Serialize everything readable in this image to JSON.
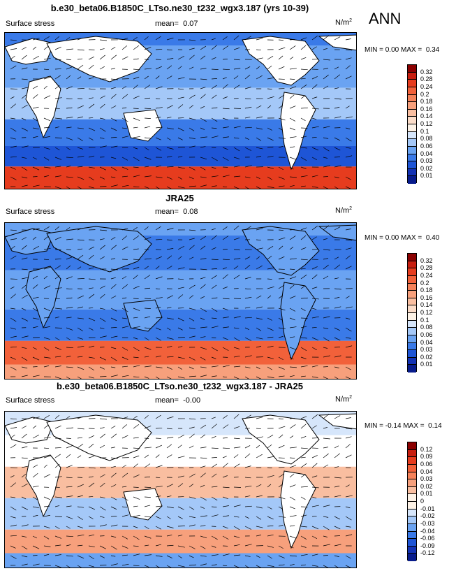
{
  "season": "ANN",
  "panels": [
    {
      "title": "b.e30_beta06.B1850C_LTso.ne30_t232_wgx3.187 (yrs 10-39)",
      "variable": "Surface stress",
      "mean_label": "mean=",
      "mean": "0.07",
      "units_base": "N/m",
      "units_exp": "2",
      "min_label": "MIN =",
      "min": "0.00",
      "max_label": "MAX =",
      "max": "0.34",
      "levels": [
        "0.32",
        "0.28",
        "0.24",
        "0.2",
        "0.18",
        "0.16",
        "0.14",
        "0.12",
        "0.1",
        "0.08",
        "0.06",
        "0.04",
        "0.03",
        "0.02",
        "0.01"
      ],
      "colors": [
        "#8b0000",
        "#c81e0f",
        "#e63c1e",
        "#f2613a",
        "#f5825a",
        "#f7a07c",
        "#f9bea0",
        "#fbdcc8",
        "#fdf2e6",
        "#d6e6fb",
        "#a4c8f8",
        "#6aa3f2",
        "#3a7ae8",
        "#1e55d6",
        "#1332b4",
        "#081c8c"
      ]
    },
    {
      "title": "JRA25",
      "variable": "Surface stress",
      "mean_label": "mean=",
      "mean": "0.08",
      "units_base": "N/m",
      "units_exp": "2",
      "min_label": "MIN =",
      "min": "0.00",
      "max_label": "MAX =",
      "max": "0.40",
      "levels": [
        "0.32",
        "0.28",
        "0.24",
        "0.2",
        "0.18",
        "0.16",
        "0.14",
        "0.12",
        "0.1",
        "0.08",
        "0.06",
        "0.04",
        "0.03",
        "0.02",
        "0.01"
      ],
      "colors": [
        "#8b0000",
        "#c81e0f",
        "#e63c1e",
        "#f2613a",
        "#f5825a",
        "#f7a07c",
        "#f9bea0",
        "#fbdcc8",
        "#fdf2e6",
        "#d6e6fb",
        "#a4c8f8",
        "#6aa3f2",
        "#3a7ae8",
        "#1e55d6",
        "#1332b4",
        "#081c8c"
      ]
    },
    {
      "title": "b.e30_beta06.B1850C_LTso.ne30_t232_wgx3.187 - JRA25",
      "variable": "Surface stress",
      "mean_label": "mean=",
      "mean": "-0.00",
      "units_base": "N/m",
      "units_exp": "2",
      "min_label": "MIN =",
      "min": "-0.14",
      "max_label": "MAX =",
      "max": "0.14",
      "levels": [
        "0.12",
        "0.09",
        "0.06",
        "0.04",
        "0.03",
        "0.02",
        "0.01",
        "0",
        "-0.01",
        "-0.02",
        "-0.03",
        "-0.04",
        "-0.06",
        "-0.09",
        "-0.12"
      ],
      "colors": [
        "#8b0000",
        "#c81e0f",
        "#e63c1e",
        "#f2613a",
        "#f5825a",
        "#f7a07c",
        "#f9bea0",
        "#fdf2e6",
        "#fdf2e6",
        "#d6e6fb",
        "#a4c8f8",
        "#6aa3f2",
        "#3a7ae8",
        "#1e55d6",
        "#1332b4",
        "#081c8c"
      ]
    }
  ],
  "chart_data": [
    {
      "type": "heatmap",
      "title": "b.e30_beta06.B1850C_LTso.ne30_t232_wgx3.187 (yrs 10-39)",
      "variable": "Surface stress",
      "units": "N/m2",
      "mean": 0.07,
      "min": 0.0,
      "max": 0.34,
      "levels": [
        0.01,
        0.02,
        0.03,
        0.04,
        0.06,
        0.08,
        0.1,
        0.12,
        0.14,
        0.16,
        0.18,
        0.2,
        0.24,
        0.28,
        0.32
      ]
    },
    {
      "type": "heatmap",
      "title": "JRA25",
      "variable": "Surface stress",
      "units": "N/m2",
      "mean": 0.08,
      "min": 0.0,
      "max": 0.4,
      "levels": [
        0.01,
        0.02,
        0.03,
        0.04,
        0.06,
        0.08,
        0.1,
        0.12,
        0.14,
        0.16,
        0.18,
        0.2,
        0.24,
        0.28,
        0.32
      ]
    },
    {
      "type": "heatmap",
      "title": "b.e30_beta06.B1850C_LTso.ne30_t232_wgx3.187 - JRA25",
      "variable": "Surface stress",
      "units": "N/m2",
      "mean": -0.0,
      "min": -0.14,
      "max": 0.14,
      "levels": [
        -0.12,
        -0.09,
        -0.06,
        -0.04,
        -0.03,
        -0.02,
        -0.01,
        0,
        0.01,
        0.02,
        0.03,
        0.04,
        0.06,
        0.09,
        0.12
      ]
    }
  ]
}
